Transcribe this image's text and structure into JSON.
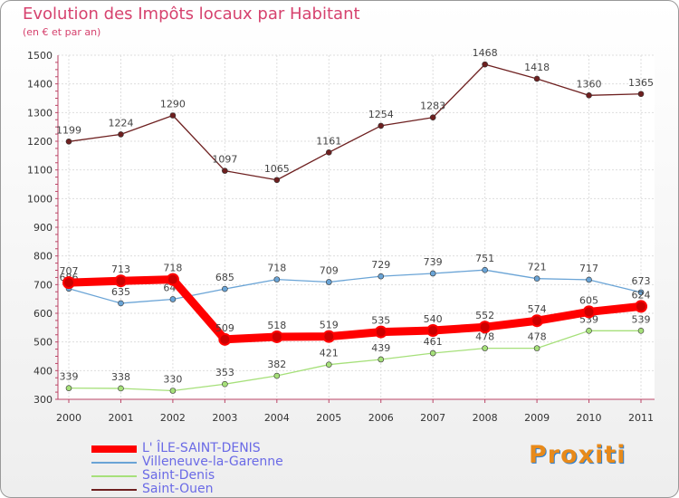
{
  "title": "Evolution des Impôts locaux par Habitant",
  "subtitle": "(en € et par an)",
  "brand": "Proxiti",
  "chart_data": {
    "type": "line",
    "x": [
      "2000",
      "2001",
      "2002",
      "2003",
      "2004",
      "2005",
      "2006",
      "2007",
      "2008",
      "2009",
      "2010",
      "2011"
    ],
    "ylim": [
      300,
      1500
    ],
    "yticks": [
      300,
      400,
      500,
      600,
      700,
      800,
      900,
      1000,
      1100,
      1200,
      1300,
      1400,
      1500
    ],
    "grid": true,
    "legend_position": "bottom-left",
    "series": [
      {
        "name": "Saint-Ouen",
        "color": "#6e2020",
        "values": [
          1199,
          1224,
          1290,
          1097,
          1065,
          1161,
          1254,
          1283,
          1468,
          1418,
          1360,
          1365
        ]
      },
      {
        "name": "Villeneuve-la-Garenne",
        "color": "#6aa4d6",
        "values": [
          686,
          635,
          649,
          685,
          718,
          709,
          729,
          739,
          751,
          721,
          717,
          673
        ]
      },
      {
        "name": "Saint-Denis",
        "color": "#a6e07a",
        "values": [
          339,
          338,
          330,
          353,
          382,
          421,
          439,
          461,
          478,
          478,
          539,
          539
        ]
      },
      {
        "name": "L' ÎLE-SAINT-DENIS",
        "color": "#ff0000",
        "values": [
          707,
          713,
          718,
          509,
          518,
          519,
          535,
          540,
          552,
          574,
          605,
          624
        ]
      }
    ]
  }
}
